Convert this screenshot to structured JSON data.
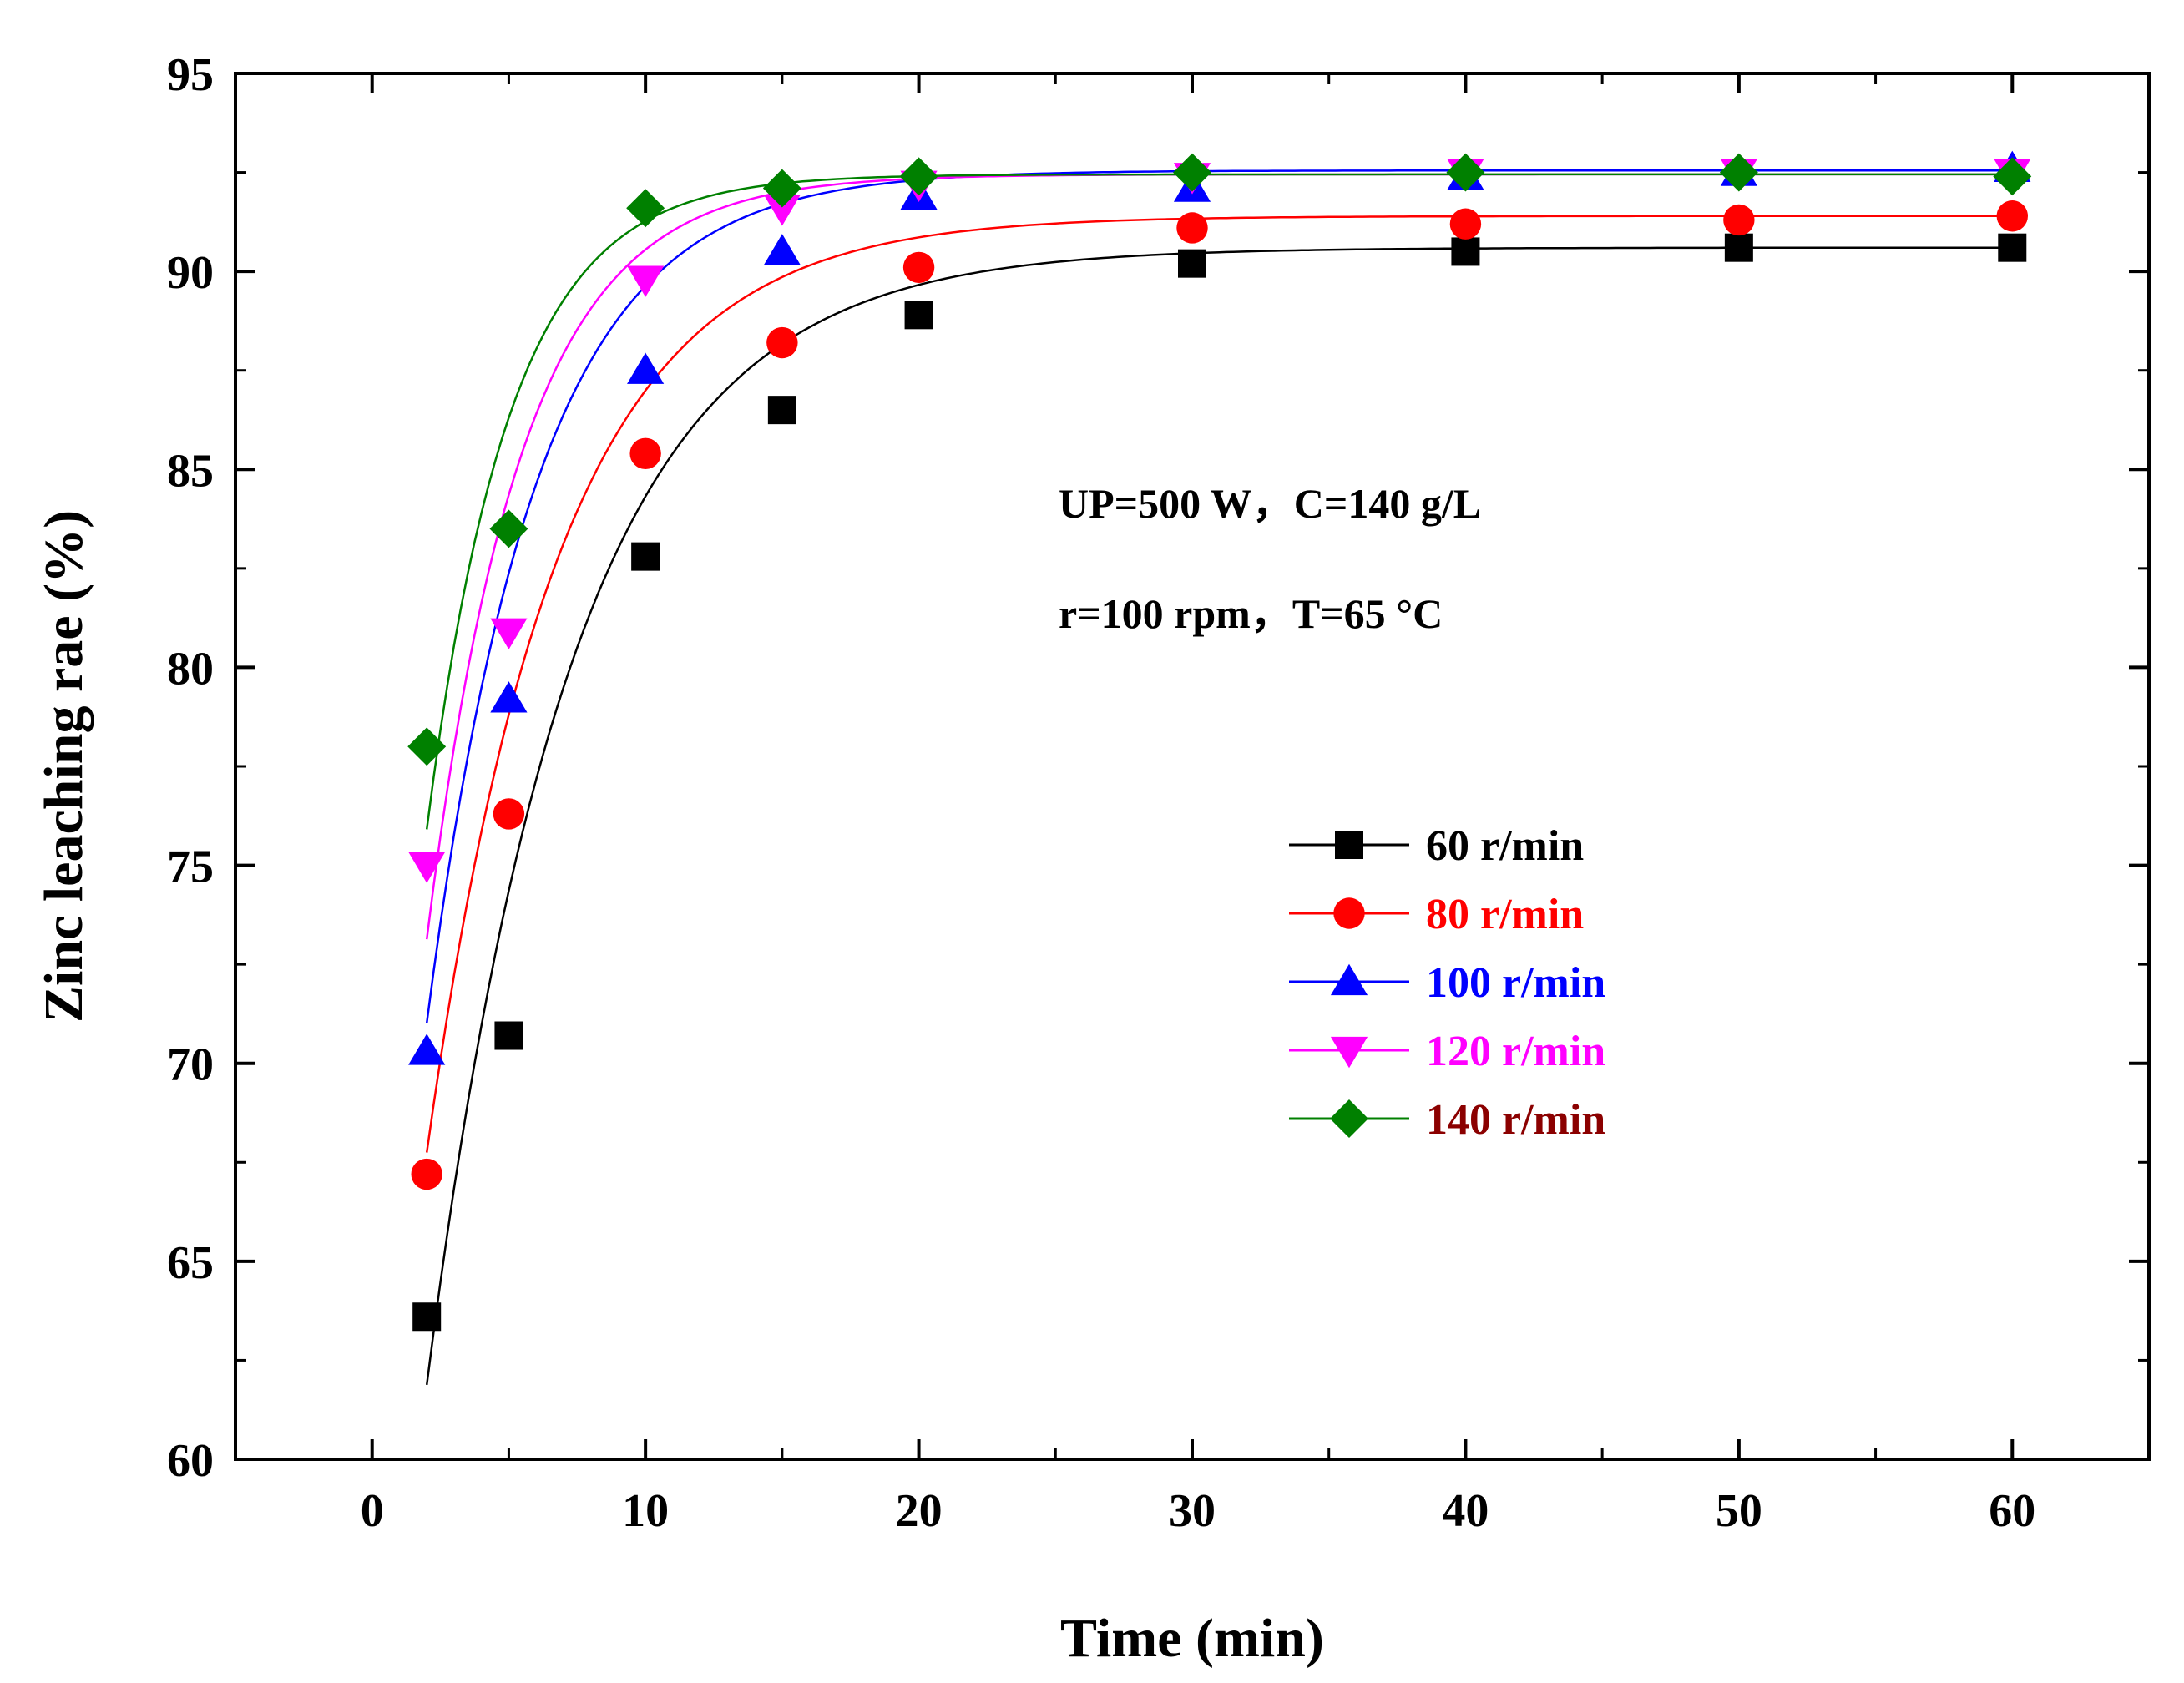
{
  "chart_data": {
    "type": "line",
    "title": "",
    "xlabel": "Time (min)",
    "ylabel": "Zinc leaching rae (%)",
    "xlim": [
      -5,
      65
    ],
    "ylim": [
      60,
      95
    ],
    "xticks": [
      0,
      10,
      20,
      30,
      40,
      50,
      60
    ],
    "yticks": [
      60,
      65,
      70,
      75,
      80,
      85,
      90,
      95
    ],
    "x": [
      2,
      5,
      10,
      15,
      20,
      30,
      40,
      50,
      60
    ],
    "series": [
      {
        "name": "60 r/min",
        "color": "#000000",
        "marker": "square",
        "label_color": "#000000",
        "values": [
          63.6,
          70.7,
          82.8,
          86.5,
          88.9,
          90.2,
          90.5,
          90.6,
          90.6
        ]
      },
      {
        "name": "80 r/min",
        "color": "#ff0000",
        "marker": "circle",
        "label_color": "#ff0000",
        "values": [
          67.2,
          76.3,
          85.4,
          88.2,
          90.1,
          91.1,
          91.2,
          91.3,
          91.4
        ]
      },
      {
        "name": "100 r/min",
        "color": "#0000ff",
        "marker": "triangle-up",
        "label_color": "#0000ff",
        "values": [
          70.3,
          79.2,
          87.5,
          90.5,
          91.9,
          92.1,
          92.4,
          92.5,
          92.6
        ]
      },
      {
        "name": "120 r/min",
        "color": "#ff00ff",
        "marker": "triangle-down",
        "label_color": "#ff00ff",
        "values": [
          75.0,
          80.9,
          89.8,
          91.6,
          92.2,
          92.4,
          92.5,
          92.5,
          92.5
        ]
      },
      {
        "name": "140 r/min",
        "color": "#008000",
        "marker": "diamond",
        "label_color": "#8b0000",
        "values": [
          78.0,
          83.5,
          91.6,
          92.1,
          92.4,
          92.5,
          92.5,
          92.5,
          92.4
        ]
      }
    ],
    "fits": [
      {
        "a": 90.6,
        "b": 42.0,
        "k": 0.19,
        "color": "#000000"
      },
      {
        "a": 91.4,
        "b": 36.0,
        "k": 0.21,
        "color": "#ff0000"
      },
      {
        "a": 92.55,
        "b": 35.5,
        "k": 0.25,
        "color": "#0000ff"
      },
      {
        "a": 92.45,
        "b": 34.5,
        "k": 0.29,
        "color": "#ff00ff"
      },
      {
        "a": 92.45,
        "b": 32.0,
        "k": 0.33,
        "color": "#008000"
      }
    ],
    "annotations": [
      "UP=500 W，C=140 g/L",
      "r=100 rpm，T=65 °C"
    ],
    "legend_position": "center-right",
    "grid": false
  }
}
